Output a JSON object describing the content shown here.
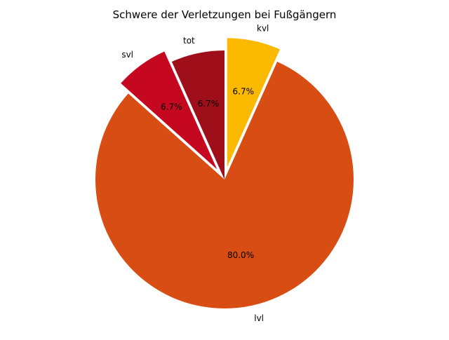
{
  "chart_data": {
    "type": "pie",
    "title": "Schwere der Verletzungen bei Fußgängern",
    "categories": [
      "kvl",
      "lvl",
      "svl",
      "tot"
    ],
    "values": [
      6.7,
      80.0,
      6.7,
      6.7
    ],
    "value_labels": [
      "6.7%",
      "80.0%",
      "6.7%",
      "6.7%"
    ],
    "colors": [
      "#FBB900",
      "#D84D13",
      "#C5071F",
      "#9E0F19"
    ],
    "exploded": [
      true,
      false,
      true,
      false
    ],
    "start_angle_deg": 90,
    "direction": "clockwise",
    "legend": "none"
  }
}
